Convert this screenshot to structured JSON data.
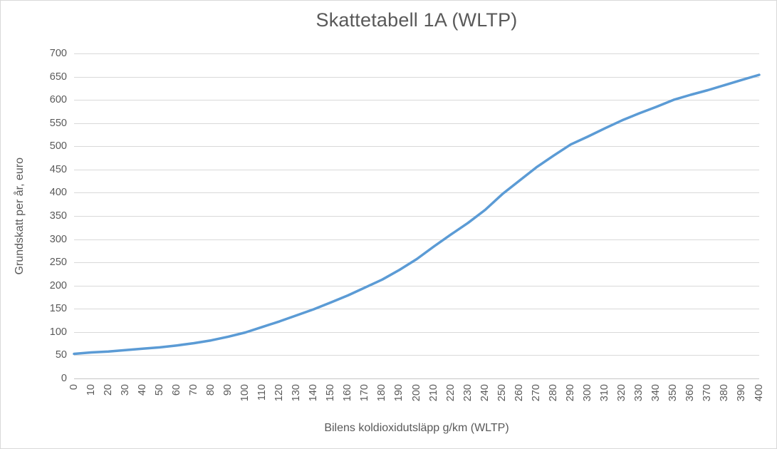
{
  "chart": {
    "title": "Skattetabell 1A (WLTP)",
    "x_axis_title": "Bilens koldioxidutsläpp g/km (WLTP)",
    "y_axis_title": "Grundskatt per år, euro"
  },
  "colors": {
    "line": "#5B9BD5",
    "grid": "#D9D9D9",
    "axis": "#C6C6C6",
    "text": "#595959",
    "background": "#FFFFFF",
    "border": "#D9D9D9"
  },
  "chart_data": {
    "type": "line",
    "title": "Skattetabell 1A (WLTP)",
    "xlabel": "Bilens koldioxidutsläpp g/km (WLTP)",
    "ylabel": "Grundskatt per år, euro",
    "x": [
      0,
      10,
      20,
      30,
      40,
      50,
      60,
      70,
      80,
      90,
      100,
      110,
      120,
      130,
      140,
      150,
      160,
      170,
      180,
      190,
      200,
      210,
      220,
      230,
      240,
      250,
      260,
      270,
      280,
      290,
      300,
      310,
      320,
      330,
      340,
      350,
      360,
      370,
      380,
      390,
      400
    ],
    "values": [
      53,
      56,
      58,
      61,
      64,
      67,
      71,
      76,
      82,
      90,
      99,
      111,
      123,
      136,
      149,
      164,
      179,
      196,
      213,
      234,
      257,
      284,
      310,
      335,
      363,
      397,
      426,
      455,
      480,
      504,
      521,
      539,
      556,
      571,
      585,
      600,
      611,
      621,
      632,
      643,
      654
    ],
    "x_ticks": [
      "0",
      "10",
      "20",
      "30",
      "40",
      "50",
      "60",
      "70",
      "80",
      "90",
      "100",
      "110",
      "120",
      "130",
      "140",
      "150",
      "160",
      "170",
      "180",
      "190",
      "200",
      "210",
      "220",
      "230",
      "240",
      "250",
      "260",
      "270",
      "280",
      "290",
      "300",
      "310",
      "320",
      "330",
      "340",
      "350",
      "360",
      "370",
      "380",
      "390",
      "400"
    ],
    "y_ticks": [
      "0",
      "50",
      "100",
      "150",
      "200",
      "250",
      "300",
      "350",
      "400",
      "450",
      "500",
      "550",
      "600",
      "650",
      "700"
    ],
    "xlim": [
      0,
      400
    ],
    "ylim": [
      0,
      700
    ],
    "grid": "horizontal",
    "legend": "none",
    "line_width": 3.5
  }
}
